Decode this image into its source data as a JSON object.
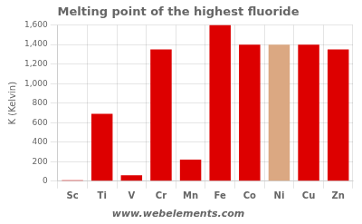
{
  "chart_data": {
    "type": "bar",
    "title": "Melting point of the highest fluoride",
    "ylabel": "K (Kelvin)",
    "categories": [
      "Sc",
      "Ti",
      "V",
      "Cr",
      "Mn",
      "Fe",
      "Co",
      "Ni",
      "Cu",
      "Zn"
    ],
    "values": [
      10,
      690,
      60,
      1350,
      220,
      1600,
      1400,
      1400,
      1400,
      1350
    ],
    "colors": [
      "#dd0000",
      "#dd0000",
      "#dd0000",
      "#dd0000",
      "#dd0000",
      "#dd0000",
      "#dd0000",
      "#dba882",
      "#dd0000",
      "#dd0000"
    ],
    "ylim": [
      0,
      1600
    ],
    "yticks": [
      0,
      200,
      400,
      600,
      800,
      {
        "value": 1000,
        "label": "1,000"
      },
      {
        "value": 1200,
        "label": "1,200"
      },
      {
        "value": 1400,
        "label": "1,400"
      },
      {
        "value": 1600,
        "label": "1,600"
      }
    ],
    "grid": true,
    "annotations": [
      "www.webelements.com"
    ]
  }
}
